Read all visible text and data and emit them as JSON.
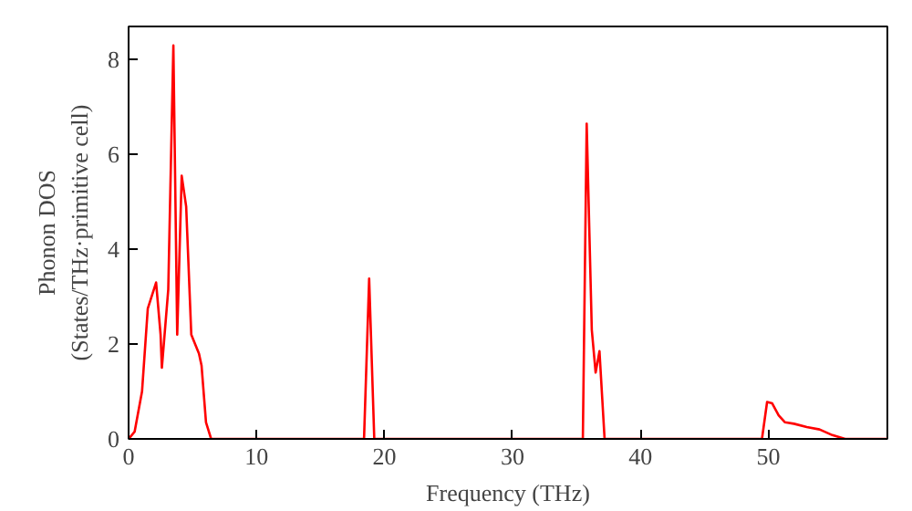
{
  "chart_data": {
    "type": "line",
    "xlabel": "Frequency (THz)",
    "ylabel": "Phonon DOS\n(States/THz·primitive cell)",
    "x": [
      0,
      0.47,
      1.05,
      1.5,
      2.15,
      2.5,
      2.6,
      3.1,
      3.5,
      3.8,
      4.15,
      4.5,
      4.9,
      5.5,
      5.7,
      6.05,
      6.45,
      18.4,
      18.8,
      19.2,
      35.5,
      35.8,
      36.2,
      36.5,
      36.8,
      37.2,
      49.5,
      49.9,
      50.3,
      50.8,
      51.3,
      52,
      53,
      54,
      55,
      56,
      59.3
    ],
    "series": [
      {
        "color": "#ff0000",
        "values": [
          0,
          0.15,
          1.0,
          2.75,
          3.3,
          2.2,
          1.5,
          3.15,
          8.3,
          2.2,
          5.55,
          4.9,
          2.2,
          1.8,
          1.55,
          0.35,
          0,
          0,
          3.38,
          0,
          0,
          6.65,
          2.3,
          1.4,
          1.85,
          0,
          0,
          0.78,
          0.75,
          0.5,
          0.35,
          0.32,
          0.25,
          0.2,
          0.08,
          0,
          0
        ]
      }
    ],
    "xlim": [
      0,
      59.3
    ],
    "ylim": [
      0,
      8.7
    ],
    "xticks": [
      0,
      10,
      20,
      30,
      40,
      50
    ],
    "yticks": [
      0,
      2,
      4,
      6,
      8
    ],
    "marker": "none",
    "line_style": "solid"
  }
}
